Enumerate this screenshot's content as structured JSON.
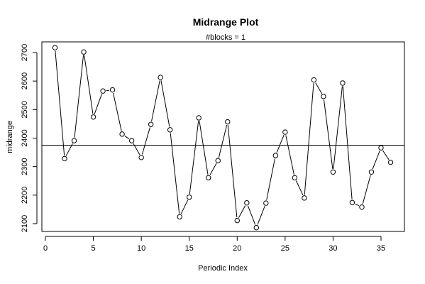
{
  "chart_data": {
    "type": "line",
    "title": "Midrange Plot",
    "subtitle": "#blocks =  1",
    "xlabel": "Periodic Index",
    "ylabel": "midrange",
    "x": [
      1,
      2,
      3,
      4,
      5,
      6,
      7,
      8,
      9,
      10,
      11,
      12,
      13,
      14,
      15,
      16,
      17,
      18,
      19,
      20,
      21,
      22,
      23,
      24,
      25,
      26,
      27,
      28,
      29,
      30,
      31,
      32,
      33,
      34,
      35,
      36
    ],
    "values": [
      2717,
      2328,
      2391,
      2702,
      2474,
      2565,
      2569,
      2414,
      2391,
      2332,
      2448,
      2613,
      2429,
      2124,
      2193,
      2471,
      2261,
      2321,
      2457,
      2111,
      2173,
      2086,
      2172,
      2339,
      2421,
      2261,
      2190,
      2604,
      2546,
      2281,
      2593,
      2174,
      2158,
      2281,
      2366,
      2315
    ],
    "reference_line": 2375,
    "xlim": [
      0,
      37
    ],
    "ylim": [
      2100,
      2740
    ],
    "x_ticks": [
      "0",
      "5",
      "10",
      "15",
      "20",
      "25",
      "30",
      "35"
    ],
    "y_ticks": [
      "2100",
      "2200",
      "2300",
      "2400",
      "2500",
      "2600",
      "2700"
    ],
    "grid": false,
    "legend": "none",
    "colors": {
      "line": "#000000",
      "point_fill": "#ffffff",
      "background": "#ffffff"
    }
  }
}
